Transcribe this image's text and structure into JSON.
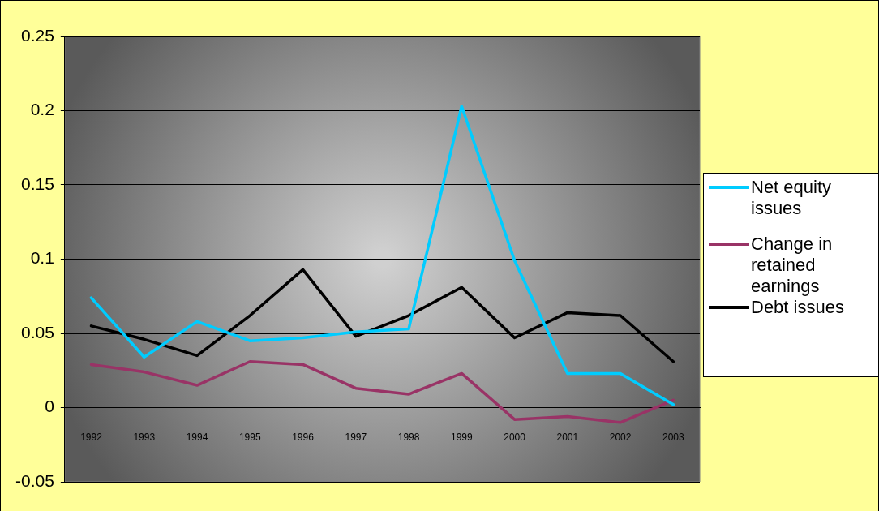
{
  "chart_data": {
    "type": "line",
    "categories": [
      "1992",
      "1993",
      "1994",
      "1995",
      "1996",
      "1997",
      "1998",
      "1999",
      "2000",
      "2001",
      "2002",
      "2003"
    ],
    "series": [
      {
        "name": "Net equity issues",
        "color": "#00ccff",
        "values": [
          0.074,
          0.034,
          0.058,
          0.045,
          0.047,
          0.051,
          0.053,
          0.203,
          0.099,
          0.023,
          0.023,
          0.002
        ]
      },
      {
        "name": "Change in retained earnings",
        "color": "#993366",
        "values": [
          0.029,
          0.024,
          0.015,
          0.031,
          0.029,
          0.013,
          0.009,
          0.023,
          -0.008,
          -0.006,
          -0.01,
          0.005
        ]
      },
      {
        "name": "Debt issues",
        "color": "#000000",
        "values": [
          0.055,
          0.046,
          0.035,
          0.062,
          0.093,
          0.048,
          0.062,
          0.081,
          0.047,
          0.064,
          0.062,
          0.031
        ]
      }
    ],
    "ylim": [
      -0.05,
      0.25
    ],
    "yticks": [
      -0.05,
      0,
      0.05,
      0.1,
      0.15,
      0.2,
      0.25
    ],
    "grid": "y",
    "legend": "right",
    "marker": "none",
    "line_style": "solid"
  }
}
